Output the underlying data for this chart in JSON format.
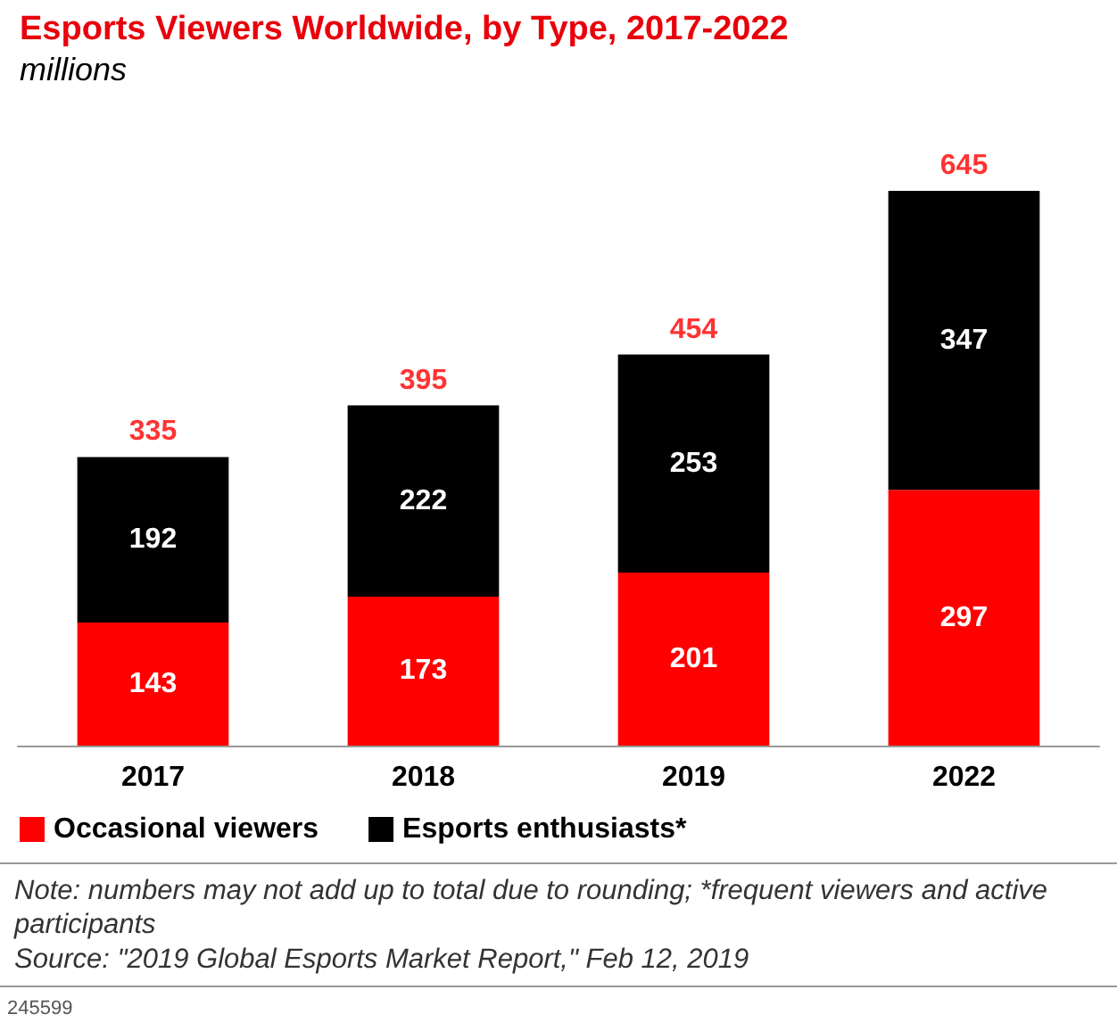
{
  "chart_data": {
    "type": "bar",
    "title": "Esports Viewers Worldwide, by Type, 2017-2022",
    "subtitle": "millions",
    "categories": [
      "2017",
      "2018",
      "2019",
      "2022"
    ],
    "stacked": true,
    "series": [
      {
        "name": "Occasional viewers",
        "color": "#ff0000",
        "values": [
          143,
          173,
          201,
          297
        ]
      },
      {
        "name": "Esports enthusiasts*",
        "color": "#000000",
        "values": [
          192,
          222,
          253,
          347
        ]
      }
    ],
    "data_labels": true,
    "totals": [
      "335",
      "395",
      "454",
      "645"
    ],
    "legend": "bottom left",
    "annotations": [
      "Note: numbers may not add up to total due to rounding; *frequent viewers and active participants",
      "Source: \"2019 Global Esports Market Report,\" Feb 12, 2019",
      "245599"
    ]
  }
}
